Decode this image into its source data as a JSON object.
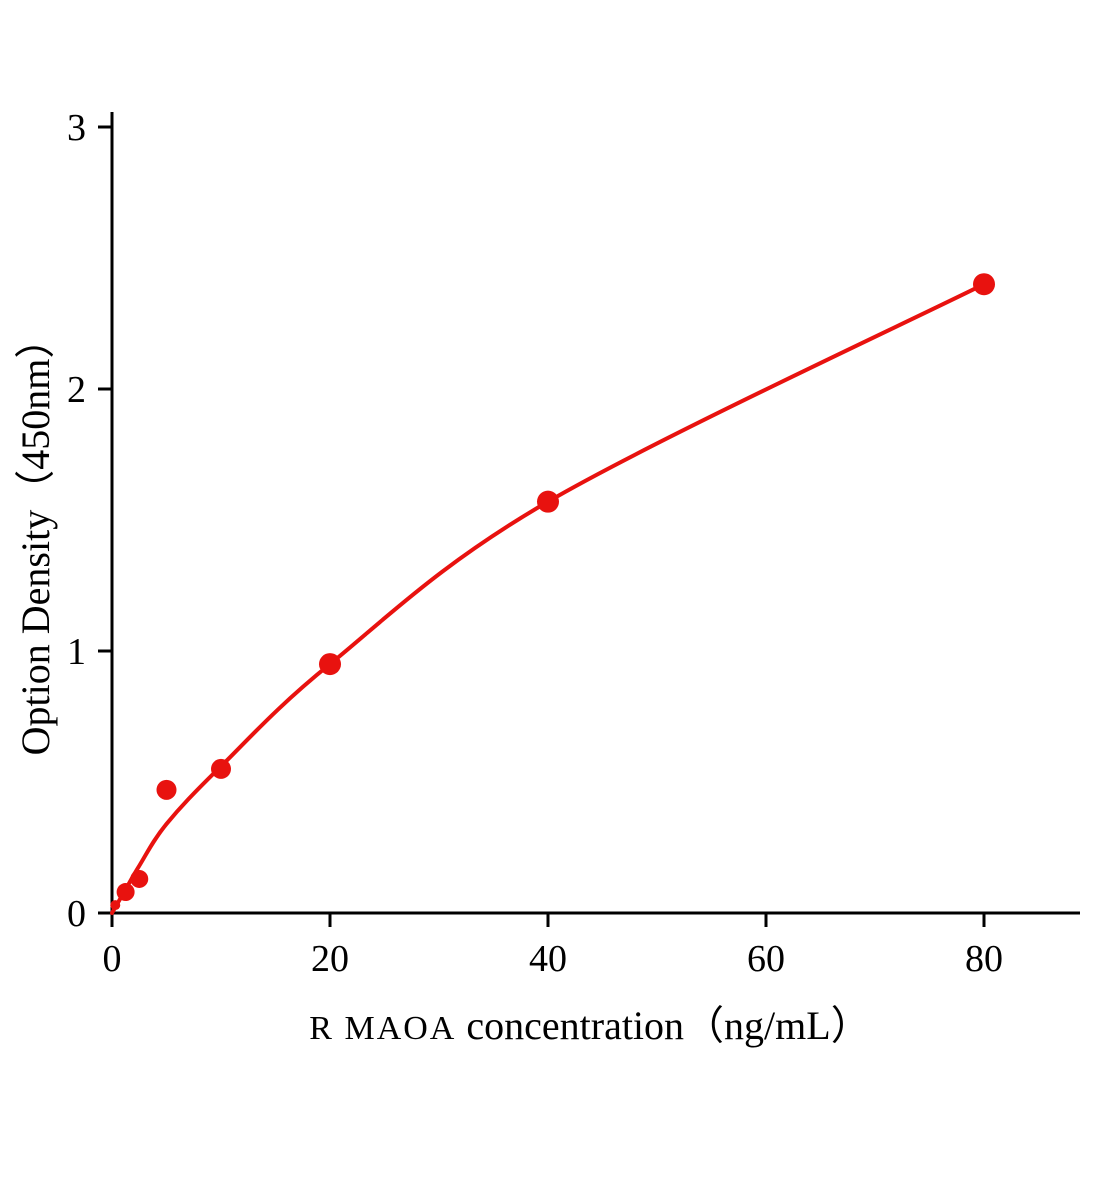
{
  "chart_data": {
    "type": "scatter",
    "title": "",
    "xlabel_prefix": "R MAOA",
    "xlabel_rest": "concentration（ng/mL）",
    "ylabel": "Option Density（450nm）",
    "xlim": [
      0,
      89
    ],
    "ylim": [
      0,
      3
    ],
    "x_ticks": [
      0,
      20,
      40,
      60,
      80
    ],
    "y_ticks": [
      0,
      1,
      2,
      3
    ],
    "grid": false,
    "legend_position": "none",
    "points": [
      {
        "x": 0.3,
        "y": 0.03,
        "r": 5
      },
      {
        "x": 1.25,
        "y": 0.08,
        "r": 9
      },
      {
        "x": 2.5,
        "y": 0.13,
        "r": 9
      },
      {
        "x": 5,
        "y": 0.47,
        "r": 10
      },
      {
        "x": 10,
        "y": 0.55,
        "r": 10
      },
      {
        "x": 20,
        "y": 0.95,
        "r": 11
      },
      {
        "x": 40,
        "y": 1.57,
        "r": 11
      },
      {
        "x": 80,
        "y": 2.4,
        "r": 11
      }
    ],
    "curve_anchors": [
      [
        0,
        0
      ],
      [
        1.25,
        0.09
      ],
      [
        2.5,
        0.18
      ],
      [
        5,
        0.34
      ],
      [
        10,
        0.56
      ],
      [
        20,
        0.95
      ],
      [
        40,
        1.57
      ],
      [
        80,
        2.4
      ]
    ],
    "colors": {
      "curve": "#e8120f",
      "point": "#e8120f",
      "axis": "#000000"
    }
  }
}
